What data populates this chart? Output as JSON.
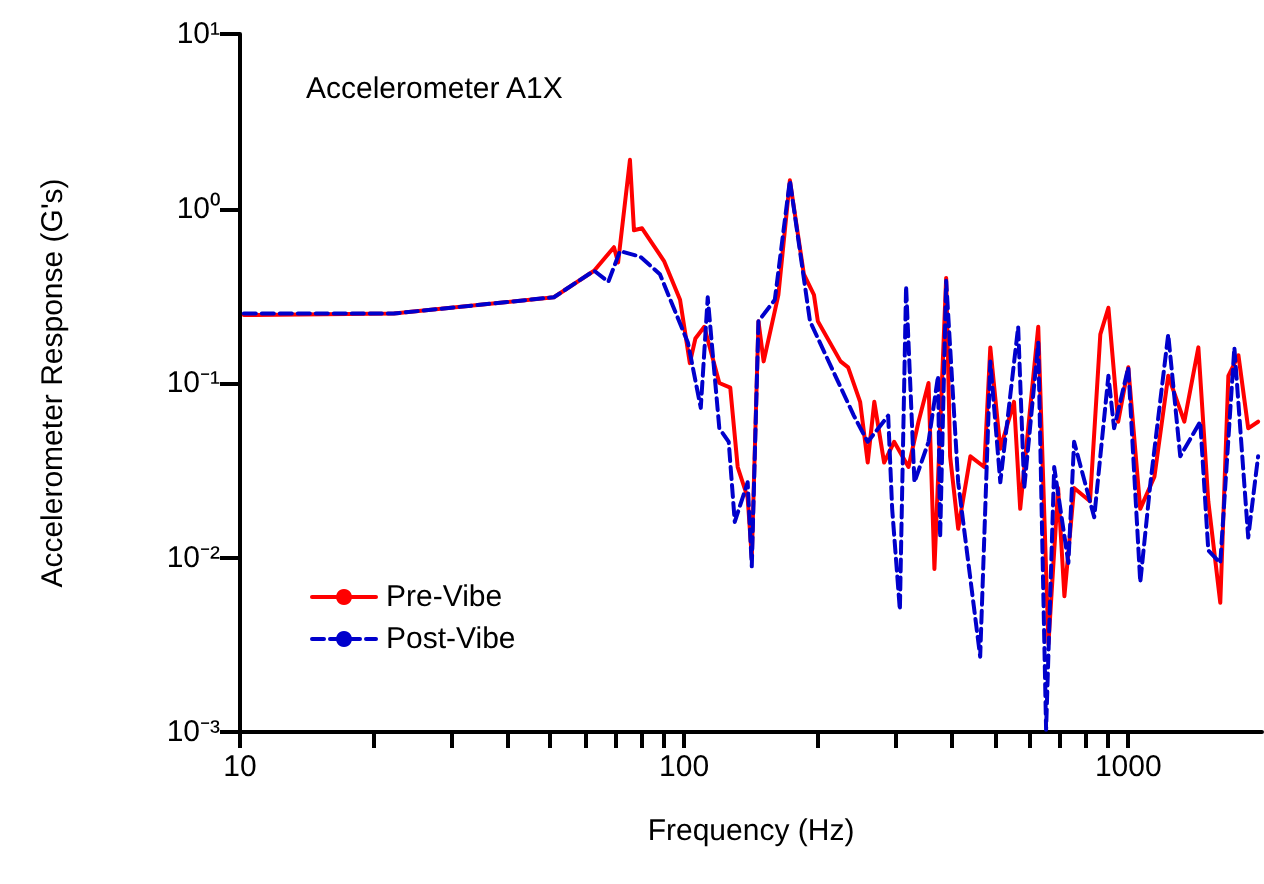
{
  "chart_data": {
    "type": "line",
    "title": "Accelerometer A1X",
    "xlabel": "Frequency (Hz)",
    "ylabel": "Accelerometer Response (G's)",
    "log": "xy",
    "grid": false,
    "legend": "bottom left",
    "marker": "none",
    "xlim": [
      10,
      2000
    ],
    "ylim": [
      0.001,
      10
    ],
    "xticks": [
      {
        "value": 10,
        "label": "10"
      },
      {
        "value": 20,
        "label": null
      },
      {
        "value": 30,
        "label": null
      },
      {
        "value": 40,
        "label": null
      },
      {
        "value": 50,
        "label": null
      },
      {
        "value": 60,
        "label": null
      },
      {
        "value": 70,
        "label": null
      },
      {
        "value": 80,
        "label": null
      },
      {
        "value": 90,
        "label": null
      },
      {
        "value": 100,
        "label": "100"
      },
      {
        "value": 200,
        "label": null
      },
      {
        "value": 300,
        "label": null
      },
      {
        "value": 400,
        "label": null
      },
      {
        "value": 500,
        "label": null
      },
      {
        "value": 600,
        "label": null
      },
      {
        "value": 700,
        "label": null
      },
      {
        "value": 800,
        "label": null
      },
      {
        "value": 900,
        "label": null
      },
      {
        "value": 1000,
        "label": "1000"
      }
    ],
    "yticks": [
      {
        "value": 0.001,
        "label": "10⁻³"
      },
      {
        "value": 0.01,
        "label": "10⁻²"
      },
      {
        "value": 0.1,
        "label": "10⁻¹"
      },
      {
        "value": 1,
        "label": "10⁰"
      },
      {
        "value": 10,
        "label": "10¹"
      }
    ],
    "series": [
      {
        "name": "Pre-Vibe",
        "color": "#ff0000",
        "line_style": "solid",
        "x": [
          10.2,
          22.2,
          50.9,
          62.7,
          69.5,
          71.0,
          75.5,
          77.1,
          80.4,
          90.1,
          97.9,
          103,
          106,
          111,
          120,
          127,
          132,
          139,
          142,
          147,
          151,
          163,
          173,
          186,
          196,
          200,
          225,
          234,
          249,
          259,
          268,
          282,
          297,
          320,
          337,
          355,
          366,
          389,
          397,
          414,
          441,
          474,
          489,
          515,
          553,
          571,
          627,
          661,
          695,
          718,
          755,
          820,
          865,
          902,
          949,
          1000,
          1064,
          1145,
          1230,
          1337,
          1438,
          1514,
          1611,
          1680,
          1770,
          1862,
          1960
        ],
        "values": [
          0.245,
          0.25,
          0.31,
          0.44,
          0.6,
          0.49,
          1.9,
          0.75,
          0.77,
          0.5,
          0.3,
          0.13,
          0.18,
          0.21,
          0.1,
          0.094,
          0.033,
          0.022,
          0.01,
          0.226,
          0.133,
          0.32,
          1.45,
          0.42,
          0.32,
          0.226,
          0.133,
          0.123,
          0.078,
          0.035,
          0.078,
          0.035,
          0.046,
          0.033,
          0.06,
          0.1,
          0.0086,
          0.4,
          0.038,
          0.0146,
          0.038,
          0.033,
          0.16,
          0.042,
          0.078,
          0.019,
          0.21,
          0.0032,
          0.025,
          0.006,
          0.025,
          0.021,
          0.19,
          0.27,
          0.06,
          0.123,
          0.019,
          0.029,
          0.11,
          0.06,
          0.16,
          0.021,
          0.0055,
          0.11,
          0.144,
          0.055,
          0.06
        ]
      },
      {
        "name": "Post-Vibe",
        "color": "#0000cc",
        "line_style": "dashed",
        "x": [
          10.2,
          22.2,
          50.9,
          62.7,
          67.5,
          71.7,
          79.6,
          88.2,
          102,
          109,
          113,
          120,
          126,
          130,
          139,
          142,
          147,
          160,
          173,
          192,
          241,
          259,
          288,
          294,
          306,
          316,
          330,
          355,
          373,
          377,
          389,
          414,
          464,
          489,
          515,
          565,
          583,
          627,
          653,
          681,
          733,
          755,
          838,
          902,
          929,
          1000,
          1064,
          1122,
          1230,
          1309,
          1452,
          1514,
          1611,
          1733,
          1862,
          1960
        ],
        "values": [
          0.25,
          0.25,
          0.31,
          0.44,
          0.38,
          0.57,
          0.53,
          0.42,
          0.17,
          0.072,
          0.31,
          0.055,
          0.046,
          0.016,
          0.027,
          0.0089,
          0.226,
          0.3,
          1.45,
          0.226,
          0.065,
          0.046,
          0.065,
          0.019,
          0.005,
          0.36,
          0.027,
          0.046,
          0.11,
          0.013,
          0.385,
          0.027,
          0.0027,
          0.133,
          0.027,
          0.21,
          0.025,
          0.17,
          0.00103,
          0.033,
          0.0093,
          0.046,
          0.017,
          0.11,
          0.055,
          0.123,
          0.0072,
          0.027,
          0.19,
          0.038,
          0.06,
          0.011,
          0.0093,
          0.16,
          0.013,
          0.038
        ]
      }
    ]
  }
}
